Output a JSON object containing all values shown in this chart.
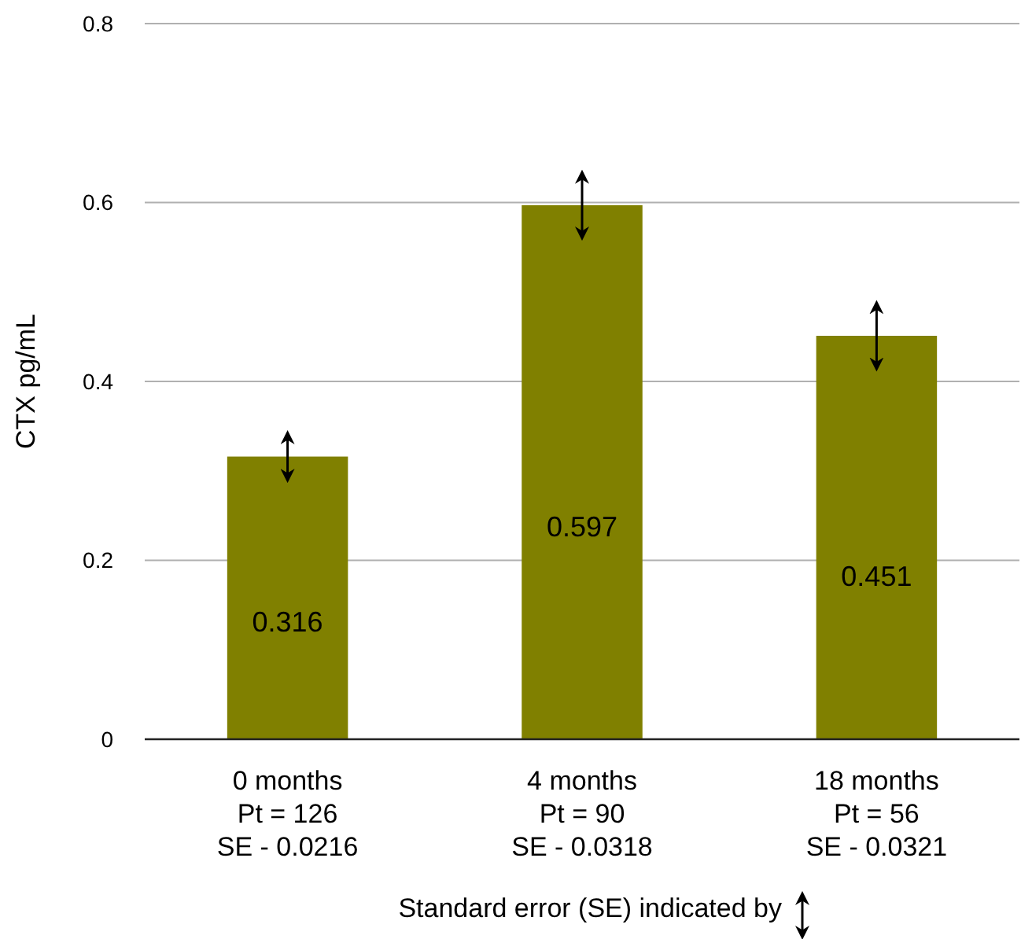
{
  "chart_data": {
    "type": "bar",
    "ylabel": "CTX pg/mL",
    "categories": [
      "0 months\nPt = 126\nSE - 0.0216",
      "4 months\nPt = 90\nSE - 0.0318",
      "18 months\nPt = 56\nSE - 0.0321"
    ],
    "values": [
      0.316,
      0.597,
      0.451
    ],
    "errors": [
      0.0216,
      0.0318,
      0.0321
    ],
    "color": "#808000",
    "ylim": [
      0,
      0.8
    ],
    "yticks": [
      0,
      0.2,
      0.4,
      0.6,
      0.8
    ],
    "grid": "y",
    "data_labels": true,
    "annotations": [
      "Standard error (SE) indicated by"
    ]
  }
}
